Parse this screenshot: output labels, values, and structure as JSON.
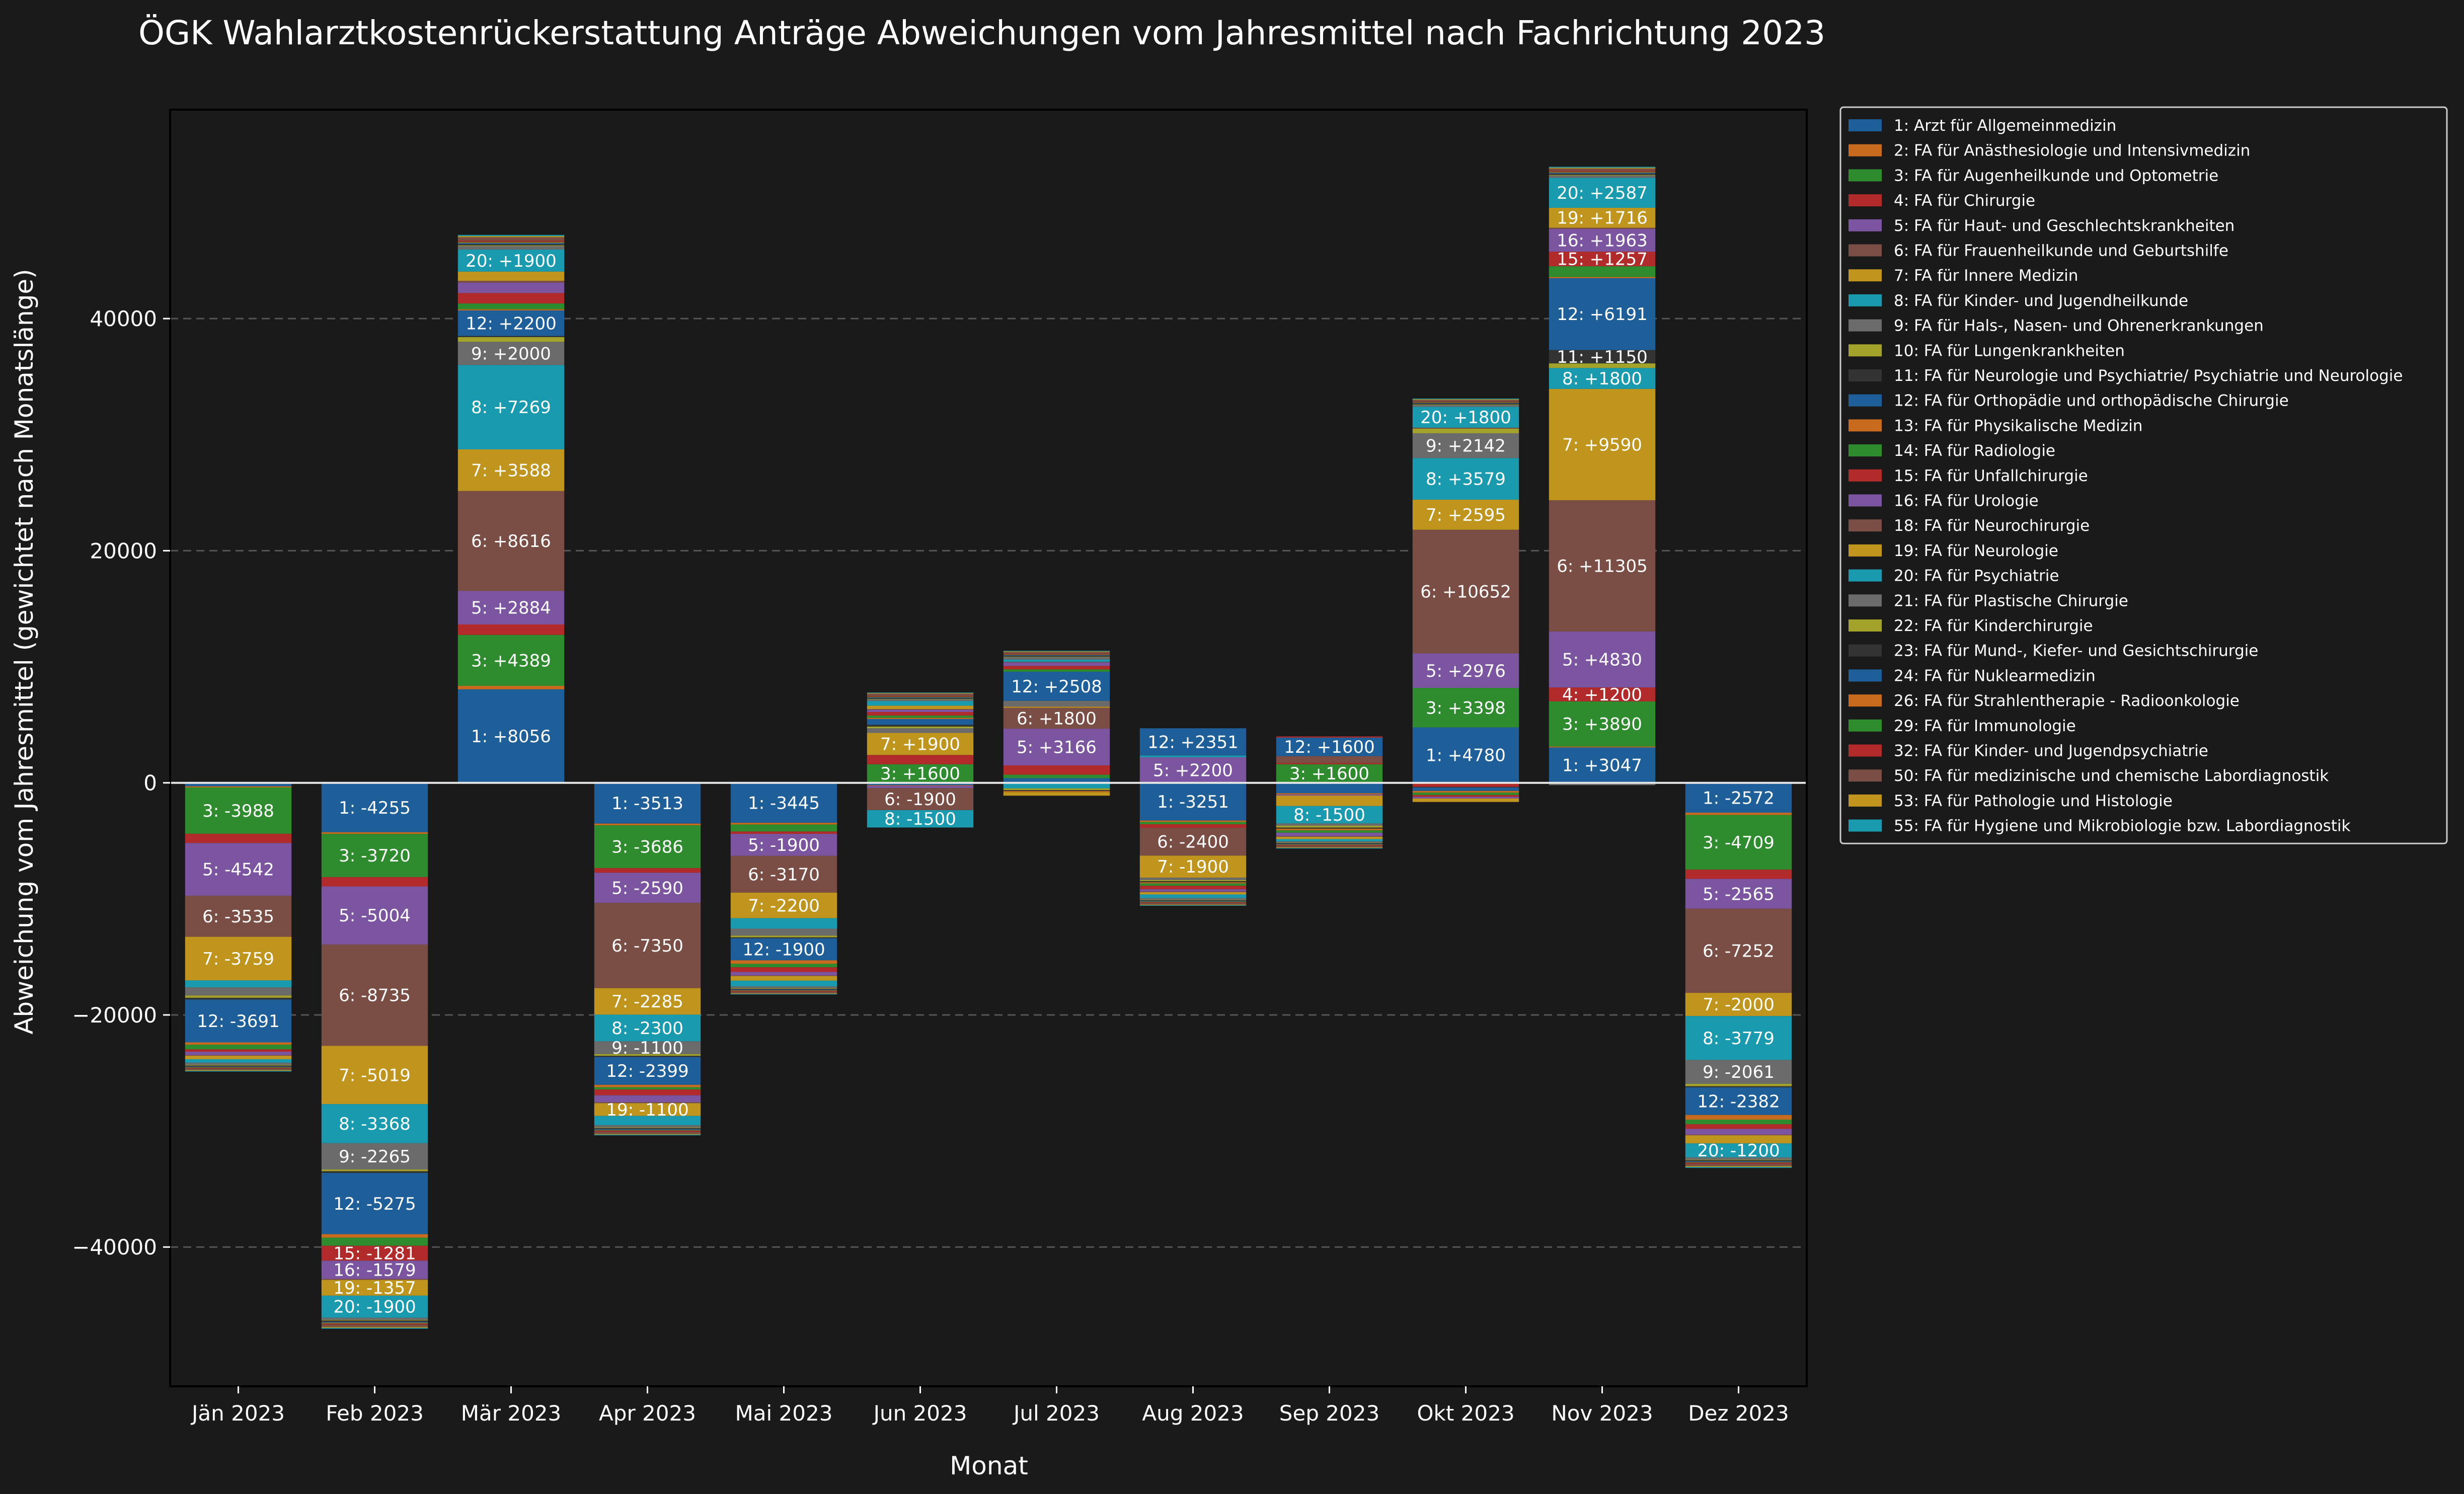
{
  "chart_data": {
    "type": "bar",
    "stacked": true,
    "title": "ÖGK Wahlarztkostenrückerstattung Anträge Abweichungen vom Jahresmittel nach Fachrichtung 2023",
    "xlabel": "Monat",
    "ylabel": "Abweichung vom Jahresmittel (gewichtet nach Monatslänge)",
    "categories": [
      "Jän 2023",
      "Feb 2023",
      "Mär 2023",
      "Apr 2023",
      "Mai 2023",
      "Jun 2023",
      "Jul 2023",
      "Aug 2023",
      "Sep 2023",
      "Okt 2023",
      "Nov 2023",
      "Dez 2023"
    ],
    "ylim": [
      -52000,
      58000
    ],
    "yticks": [
      -40000,
      -20000,
      0,
      20000,
      40000
    ],
    "grid": "horizontal-dashed",
    "legend": "outside-right",
    "label_threshold": 1000,
    "series": [
      {
        "id": "1",
        "name": "1: Arzt für Allgemeinmedizin",
        "color": "#1f5f99",
        "values": [
          -300,
          -4255,
          8056,
          -3513,
          -3445,
          -200,
          400,
          -3251,
          -900,
          4780,
          3047,
          -2572
        ]
      },
      {
        "id": "2",
        "name": "2: FA für Anästhesiologie und Intensivmedizin",
        "color": "#c96b1e",
        "values": [
          -100,
          -150,
          300,
          -150,
          -150,
          -50,
          -80,
          -120,
          -100,
          -50,
          80,
          -200
        ]
      },
      {
        "id": "3",
        "name": "3: FA für Augenheilkunde und Optometrie",
        "color": "#2e8b2e",
        "values": [
          -3988,
          -3720,
          4389,
          -3686,
          -600,
          1600,
          300,
          -200,
          1600,
          3398,
          3890,
          -4709
        ]
      },
      {
        "id": "4",
        "name": "4: FA für Chirurgie",
        "color": "#b22b2b",
        "values": [
          -800,
          -800,
          900,
          -400,
          -200,
          800,
          800,
          -300,
          100,
          -300,
          1200,
          -800
        ]
      },
      {
        "id": "5",
        "name": "5: FA für Haut- und Geschlechtskrankheiten",
        "color": "#7b55a0",
        "values": [
          -4542,
          -5004,
          2884,
          -2590,
          -1900,
          -200,
          3166,
          2200,
          -100,
          2976,
          4830,
          -2565
        ]
      },
      {
        "id": "6",
        "name": "6: FA für Frauenheilkunde und Geburtshilfe",
        "color": "#7a4d45",
        "values": [
          -3535,
          -8735,
          8616,
          -7350,
          -3170,
          -1900,
          1800,
          -2400,
          600,
          10652,
          11305,
          -7252
        ]
      },
      {
        "id": "7",
        "name": "7: FA für Innere Medizin",
        "color": "#c0951e",
        "values": [
          -3759,
          -5019,
          3588,
          -2285,
          -2200,
          1900,
          100,
          -1900,
          -900,
          2595,
          9590,
          -2000
        ]
      },
      {
        "id": "8",
        "name": "8: FA für Kinder- und Jugendheilkunde",
        "color": "#1a9aae",
        "values": [
          -600,
          -3368,
          7269,
          -2300,
          -900,
          -1500,
          -400,
          150,
          -1500,
          3579,
          1800,
          -3779
        ]
      },
      {
        "id": "9",
        "name": "9: FA für Hals-, Nasen- und Ohrenerkrankungen",
        "color": "#6b6b6b",
        "values": [
          -700,
          -2265,
          2000,
          -1100,
          -600,
          400,
          500,
          -200,
          -200,
          2142,
          -200,
          -2061
        ]
      },
      {
        "id": "10",
        "name": "10: FA für Lungenkrankheiten",
        "color": "#a3a32b",
        "values": [
          -200,
          -150,
          400,
          -150,
          -150,
          150,
          -150,
          -100,
          -150,
          400,
          400,
          -200
        ]
      },
      {
        "id": "11",
        "name": "11: FA für Neurologie und Psychiatrie/ Psychiatrie und Neurologie",
        "color": "#333333",
        "values": [
          -150,
          -150,
          100,
          -100,
          -80,
          150,
          -80,
          -100,
          -100,
          -50,
          1150,
          -100
        ]
      },
      {
        "id": "12",
        "name": "12: FA für Orthopädie und orthopädische Chirurgie",
        "color": "#1f5f99",
        "values": [
          -3691,
          -5275,
          2200,
          -2399,
          -1900,
          500,
          2508,
          2351,
          1600,
          -300,
          6191,
          -2382
        ]
      },
      {
        "id": "13",
        "name": "13: FA für Physikalische Medizin",
        "color": "#c96b1e",
        "values": [
          -200,
          -300,
          100,
          -200,
          -300,
          100,
          -100,
          -100,
          -150,
          -150,
          100,
          -400
        ]
      },
      {
        "id": "14",
        "name": "14: FA für Radiologie",
        "color": "#2e8b2e",
        "values": [
          -400,
          -700,
          500,
          -200,
          -300,
          200,
          200,
          -200,
          -200,
          -200,
          928,
          -400
        ]
      },
      {
        "id": "15",
        "name": "15: FA für Unfallchirurgie",
        "color": "#b22b2b",
        "values": [
          -200,
          -1281,
          900,
          -500,
          -400,
          300,
          300,
          -300,
          100,
          -150,
          1257,
          -400
        ]
      },
      {
        "id": "16",
        "name": "16: FA für Urologie",
        "color": "#7b55a0",
        "values": [
          -300,
          -1579,
          900,
          -600,
          -300,
          200,
          300,
          -200,
          -300,
          -150,
          1963,
          -500
        ]
      },
      {
        "id": "18",
        "name": "18: FA für Neurochirurgie",
        "color": "#7a4d45",
        "values": [
          -50,
          -80,
          150,
          -80,
          -50,
          50,
          50,
          -50,
          -50,
          80,
          100,
          -50
        ]
      },
      {
        "id": "19",
        "name": "19: FA für Neurologie",
        "color": "#c0951e",
        "values": [
          -300,
          -1357,
          800,
          -1100,
          -400,
          300,
          -300,
          -200,
          -200,
          -300,
          1716,
          -700
        ]
      },
      {
        "id": "20",
        "name": "20: FA für Psychiatrie",
        "color": "#1a9aae",
        "values": [
          -300,
          -1900,
          1900,
          -800,
          -500,
          400,
          200,
          -300,
          -200,
          1800,
          2587,
          -1200
        ]
      },
      {
        "id": "21",
        "name": "21: FA für Plastische Chirurgie",
        "color": "#6b6b6b",
        "values": [
          -200,
          -200,
          300,
          -200,
          -150,
          150,
          200,
          -150,
          -100,
          150,
          200,
          -200
        ]
      },
      {
        "id": "22",
        "name": "22: FA für Kinderchirurgie",
        "color": "#a3a32b",
        "values": [
          -50,
          -50,
          60,
          -50,
          -50,
          40,
          40,
          -40,
          -40,
          50,
          50,
          -50
        ]
      },
      {
        "id": "23",
        "name": "23: FA für Mund-, Kiefer- und Gesichtschirurgie",
        "color": "#333333",
        "values": [
          -80,
          -100,
          100,
          -80,
          -60,
          60,
          80,
          -60,
          -60,
          80,
          100,
          -80
        ]
      },
      {
        "id": "24",
        "name": "24: FA für Nuklearmedizin",
        "color": "#1f5f99",
        "values": [
          -50,
          -80,
          100,
          -80,
          -60,
          60,
          60,
          -60,
          -50,
          50,
          80,
          -80
        ]
      },
      {
        "id": "26",
        "name": "26: FA für Strahlentherapie - Radioonkologie",
        "color": "#c96b1e",
        "values": [
          -30,
          -40,
          50,
          -30,
          -30,
          30,
          30,
          -30,
          -30,
          30,
          40,
          -30
        ]
      },
      {
        "id": "29",
        "name": "29: FA für Immunologie",
        "color": "#2e8b2e",
        "values": [
          -30,
          -40,
          50,
          -30,
          -30,
          30,
          30,
          -30,
          -30,
          30,
          40,
          -30
        ]
      },
      {
        "id": "32",
        "name": "32: FA für Kinder- und Jugendpsychiatrie",
        "color": "#b22b2b",
        "values": [
          -50,
          -80,
          100,
          -80,
          -60,
          60,
          60,
          -50,
          -50,
          50,
          80,
          -80
        ]
      },
      {
        "id": "50",
        "name": "50: FA für medizinische und chemische Labordiagnostik",
        "color": "#7a4d45",
        "values": [
          -150,
          -200,
          300,
          -200,
          -150,
          200,
          150,
          -150,
          -150,
          150,
          200,
          -200
        ]
      },
      {
        "id": "53",
        "name": "53: FA für Pathologie und Histologie",
        "color": "#c0951e",
        "values": [
          -60,
          -80,
          100,
          -60,
          -50,
          50,
          50,
          -50,
          -50,
          60,
          80,
          -80
        ]
      },
      {
        "id": "55",
        "name": "55: FA für Hygiene und Mikrobiologie bzw. Labordiagnostik",
        "color": "#1a9aae",
        "values": [
          -60,
          -80,
          100,
          -60,
          -50,
          50,
          50,
          -50,
          -50,
          60,
          80,
          -80
        ]
      }
    ]
  }
}
